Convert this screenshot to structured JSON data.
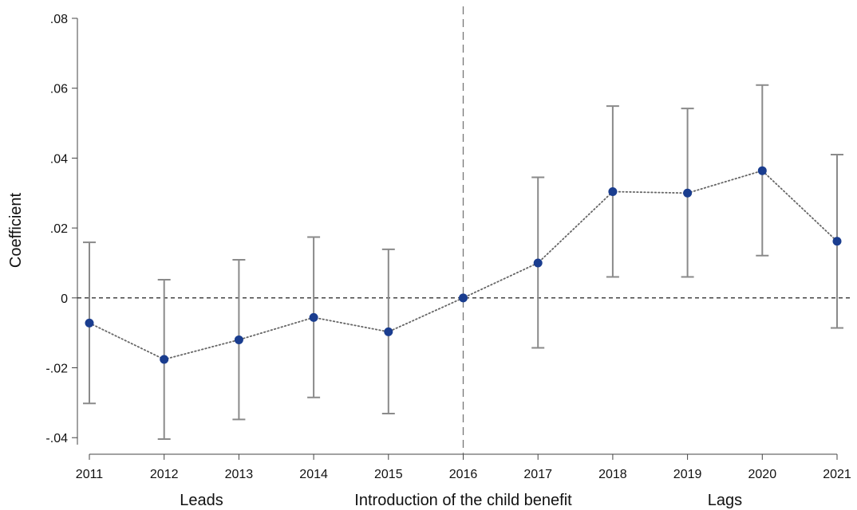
{
  "chart_data": {
    "type": "scatter",
    "title": "",
    "xlabel": "",
    "ylabel": "Coefficient",
    "x": [
      2011,
      2012,
      2013,
      2014,
      2015,
      2016,
      2017,
      2018,
      2019,
      2020,
      2021
    ],
    "x_tick_labels": [
      "2011",
      "2012",
      "2013",
      "2014",
      "2015",
      "2016",
      "2017",
      "2018",
      "2019",
      "2020",
      "2021"
    ],
    "y_ticks": [
      -0.04,
      -0.02,
      0,
      0.02,
      0.04,
      0.06,
      0.08
    ],
    "y_tick_labels": [
      "-.04",
      "-.02",
      "0",
      ".02",
      ".04",
      ".06",
      ".08"
    ],
    "ylim": [
      -0.042,
      0.08
    ],
    "xlim": [
      2011,
      2021
    ],
    "series": [
      {
        "values": [
          -0.0072,
          -0.0176,
          -0.012,
          -0.0056,
          -0.0097,
          0.0,
          0.01,
          0.0304,
          0.03,
          0.0364,
          0.0162
        ],
        "ci_lower": [
          -0.0302,
          -0.0404,
          -0.0348,
          -0.0285,
          -0.0331,
          0.0,
          -0.0143,
          0.006,
          0.006,
          0.0121,
          -0.0086
        ],
        "ci_upper": [
          0.0159,
          0.0052,
          0.0109,
          0.0174,
          0.0139,
          0.0,
          0.0345,
          0.0549,
          0.0542,
          0.0609,
          0.041
        ],
        "color": "#1a3d8f",
        "connector": "dotted"
      }
    ],
    "reference_lines": {
      "horizontal_at": 0,
      "vertical_at": 2016
    },
    "period_labels": [
      {
        "text": "Leads",
        "x": 2012.5
      },
      {
        "text": "Introduction of the child benefit",
        "x": 2016
      },
      {
        "text": "Lags",
        "x": 2019.5
      }
    ],
    "grid": false,
    "colors": {
      "point": "#1a3d8f",
      "errorbar": "#8a8a8a",
      "connector": "#666666",
      "reference": "#333333"
    }
  }
}
